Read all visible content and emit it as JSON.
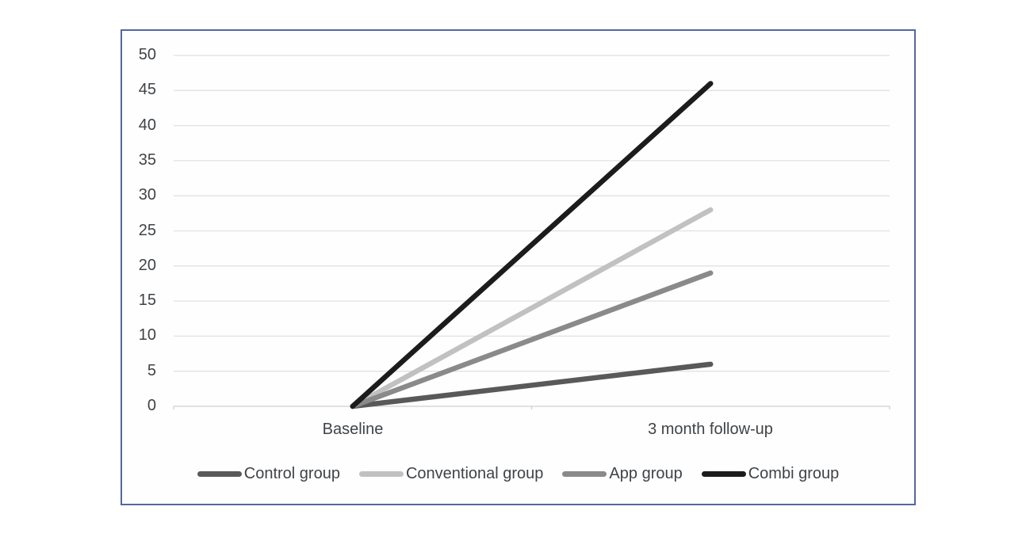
{
  "colors": {
    "canvas_background": "#ffffff",
    "frame_background": "#fefefe",
    "frame_border": "#53689f",
    "grid": "#dfe1e4",
    "axis": "#cdd0d4",
    "text": "#3f4347"
  },
  "chart_data": {
    "type": "line",
    "title": "",
    "xlabel": "",
    "ylabel": "",
    "categories": [
      "Baseline",
      "3 month follow-up"
    ],
    "series": [
      {
        "name": "Control group",
        "values": [
          0,
          6
        ],
        "color": "#595959"
      },
      {
        "name": "Conventional group",
        "values": [
          0,
          28
        ],
        "color": "#c1c1c1"
      },
      {
        "name": "App group",
        "values": [
          0,
          19
        ],
        "color": "#8a8a8a"
      },
      {
        "name": "Combi group",
        "values": [
          0,
          46
        ],
        "color": "#1c1c1c"
      }
    ],
    "ylim": [
      0,
      50
    ],
    "ytick_step": 5,
    "yticks": [
      0,
      5,
      10,
      15,
      20,
      25,
      30,
      35,
      40,
      45,
      50
    ],
    "grid": true,
    "legend_position": "bottom",
    "line_width": 6.5
  }
}
